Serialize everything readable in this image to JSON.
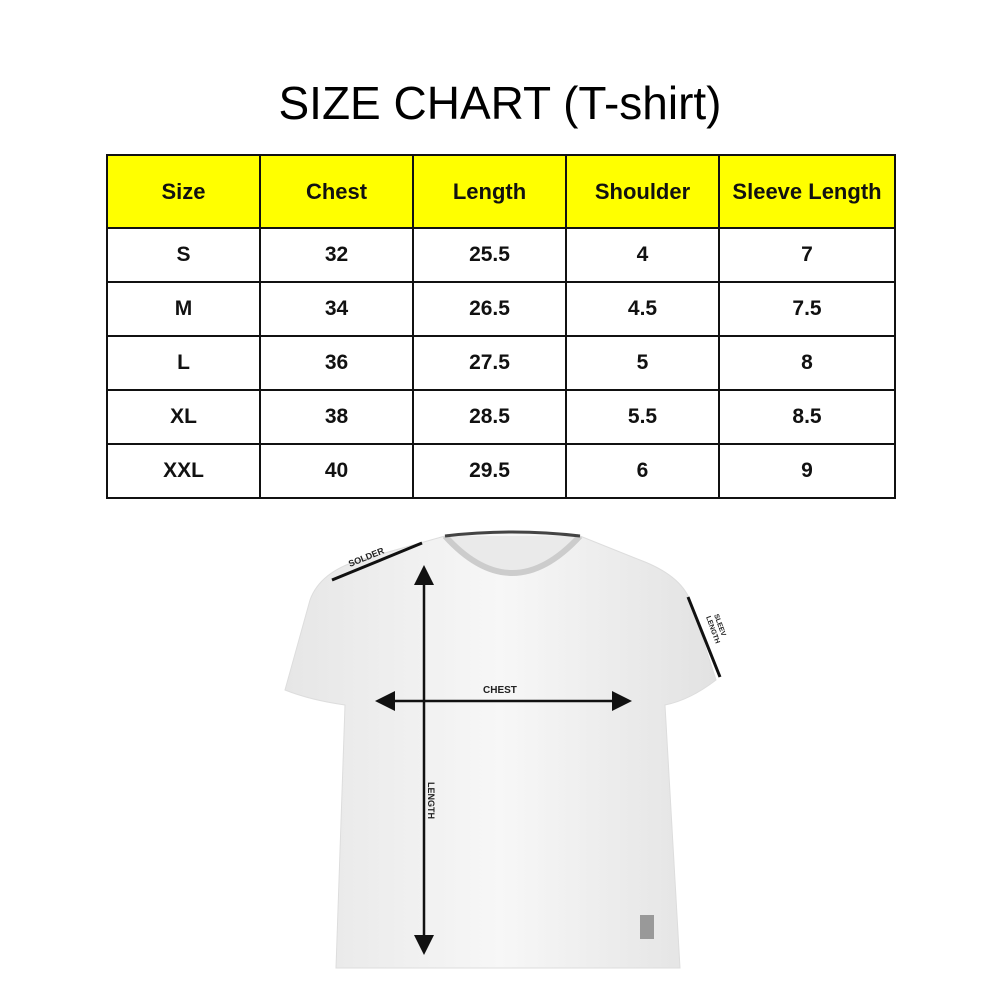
{
  "title": "SIZE CHART (T-shirt)",
  "table": {
    "headers": [
      "Size",
      "Chest",
      "Length",
      "Shoulder",
      "Sleeve Length"
    ],
    "rows": [
      [
        "S",
        "32",
        "25.5",
        "4",
        "7"
      ],
      [
        "M",
        "34",
        "26.5",
        "4.5",
        "7.5"
      ],
      [
        "L",
        "36",
        "27.5",
        "5",
        "8"
      ],
      [
        "XL",
        "38",
        "28.5",
        "5.5",
        "8.5"
      ],
      [
        "XXL",
        "40",
        "29.5",
        "6",
        "9"
      ]
    ],
    "header_color": "#ffff00"
  },
  "diagram": {
    "shoulder_label": "SOLDER",
    "chest_label": "CHEST",
    "length_label": "LENGTH",
    "sleeve_label_1": "SLEEV",
    "sleeve_label_2": "LENGTH"
  }
}
